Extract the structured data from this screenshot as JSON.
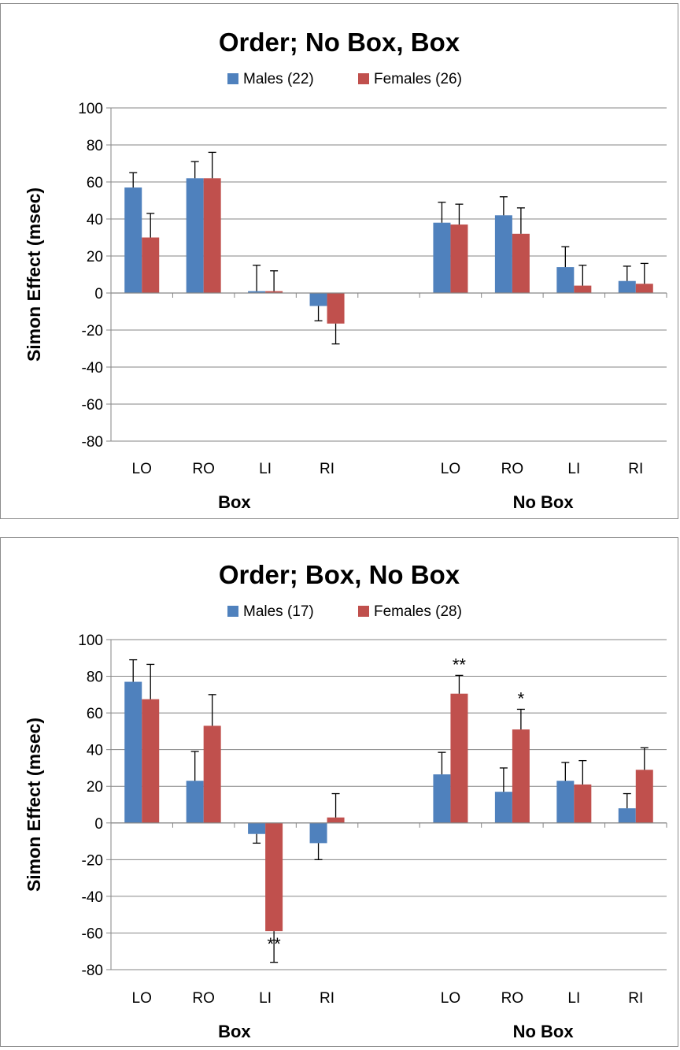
{
  "chart_data": [
    {
      "type": "bar",
      "title": "Order; No Box, Box",
      "ylabel": "Simon Effect (msec)",
      "ylim": [
        -80,
        100
      ],
      "yticks": [
        100,
        80,
        60,
        40,
        20,
        0,
        -20,
        -40,
        -60,
        -80
      ],
      "grid": true,
      "legend_position": "top",
      "groups": [
        {
          "label": "Box",
          "categories": [
            "LO",
            "RO",
            "LI",
            "RI"
          ]
        },
        {
          "label": "No Box",
          "categories": [
            "LO",
            "RO",
            "LI",
            "RI"
          ]
        }
      ],
      "series": [
        {
          "name": "Males (22)",
          "color": "#4f81bd",
          "values": [
            57,
            62,
            1,
            -7,
            38,
            42,
            14,
            6.5
          ],
          "error": [
            8,
            9,
            14,
            8,
            11,
            10,
            11,
            8
          ]
        },
        {
          "name": "Females (26)",
          "color": "#c0504d",
          "values": [
            30,
            62,
            1,
            -16.5,
            37,
            32,
            4,
            5
          ],
          "error": [
            13,
            14,
            11,
            11,
            11,
            14,
            11,
            11
          ]
        }
      ],
      "annotations": []
    },
    {
      "type": "bar",
      "title": "Order; Box, No Box",
      "ylabel": "Simon Effect (msec)",
      "ylim": [
        -80,
        100
      ],
      "yticks": [
        100,
        80,
        60,
        40,
        20,
        0,
        -20,
        -40,
        -60,
        -80
      ],
      "grid": true,
      "legend_position": "top",
      "groups": [
        {
          "label": "Box",
          "categories": [
            "LO",
            "RO",
            "LI",
            "RI"
          ]
        },
        {
          "label": "No Box",
          "categories": [
            "LO",
            "RO",
            "LI",
            "RI"
          ]
        }
      ],
      "series": [
        {
          "name": "Males (17)",
          "color": "#4f81bd",
          "values": [
            77,
            23,
            -6,
            -11,
            26.5,
            17,
            23,
            8
          ],
          "error": [
            12,
            16,
            5,
            9,
            12,
            13,
            10,
            8
          ]
        },
        {
          "name": "Females (28)",
          "color": "#c0504d",
          "values": [
            67.5,
            53,
            -59,
            3,
            70.5,
            51,
            21,
            29
          ],
          "error": [
            19,
            17,
            17,
            13,
            10,
            11,
            13,
            12
          ]
        }
      ],
      "annotations": [
        {
          "text": "**",
          "series": 1,
          "index": 4,
          "placement": "above"
        },
        {
          "text": "*",
          "series": 1,
          "index": 5,
          "placement": "above"
        },
        {
          "text": "**",
          "series": 1,
          "index": 2,
          "placement": "below"
        }
      ]
    }
  ]
}
